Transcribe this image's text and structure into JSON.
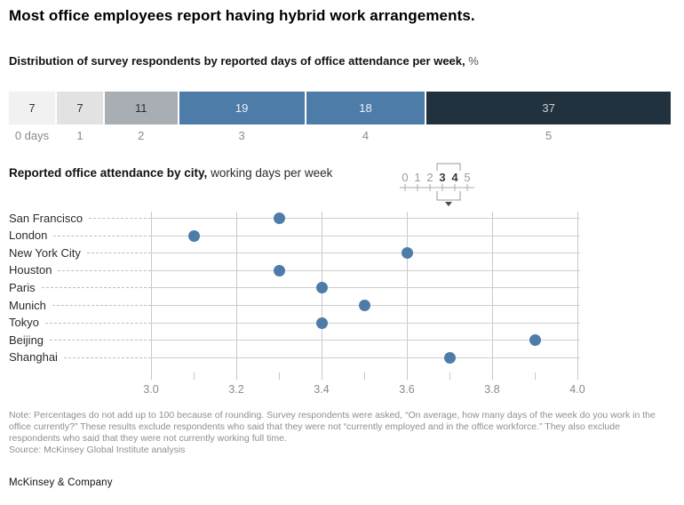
{
  "page": {
    "title": "Most office employees report having hybrid work arrangements.",
    "subtitle_bold": "Distribution of survey respondents by reported days of office attendance per week,",
    "subtitle_unit": "%",
    "note": "Note: Percentages do not add up to 100 because of rounding. Survey respondents were asked, “On average, how many days of the week do you work in the office currently?” These results exclude respondents who said that they were not “currently employed and in the office workforce.” They also exclude respondents who said that they were not currently working full time.",
    "source": "Source: McKinsey Global Institute analysis",
    "brand": "McKinsey & Company"
  },
  "colors": {
    "steel_blue": "#4e7ca9",
    "dark_navy": "#21313e",
    "gridline": "#c9c9c9",
    "muted_text": "#8a8a8a"
  },
  "chart_data": [
    {
      "type": "bar",
      "variant": "horizontal-stacked",
      "title": "Distribution of survey respondents by reported days of office attendance per week, %",
      "categories": [
        "0 days",
        "1",
        "2",
        "3",
        "4",
        "5"
      ],
      "values": [
        7,
        7,
        11,
        19,
        18,
        37
      ],
      "segment_colors": [
        "#f1f1f1",
        "#e2e2e3",
        "#a9adb4",
        "#4e7ca9",
        "#4e7ca9",
        "#21313e"
      ],
      "label_colors": [
        "#333333",
        "#333333",
        "#2e2e2e",
        "#eef2f5",
        "#eef2f5",
        "#ccd2d7"
      ]
    },
    {
      "type": "scatter",
      "title_bold": "Reported office attendance by city,",
      "title_rest": "working days per week",
      "categories": [
        "San Francisco",
        "London",
        "New York City",
        "Houston",
        "Paris",
        "Munich",
        "Tokyo",
        "Beijing",
        "Shanghai"
      ],
      "values": [
        3.3,
        3.1,
        3.6,
        3.3,
        3.4,
        3.5,
        3.4,
        3.9,
        3.7
      ],
      "xlabel": "",
      "ylabel": "",
      "xlim": [
        3.0,
        4.0
      ],
      "x_ticks": [
        3.0,
        3.2,
        3.4,
        3.6,
        3.8,
        4.0
      ],
      "x_tick_labels": [
        "3.0",
        "3.2",
        "3.4",
        "3.6",
        "3.8",
        "4.0"
      ],
      "x_minor_ticks": [
        3.1,
        3.3,
        3.5,
        3.7,
        3.9
      ],
      "grid": "vertical-and-row-lines",
      "legend": {
        "numbers": [
          "0",
          "1",
          "2",
          "3",
          "4",
          "5"
        ],
        "highlighted": [
          "3",
          "4"
        ]
      }
    }
  ]
}
